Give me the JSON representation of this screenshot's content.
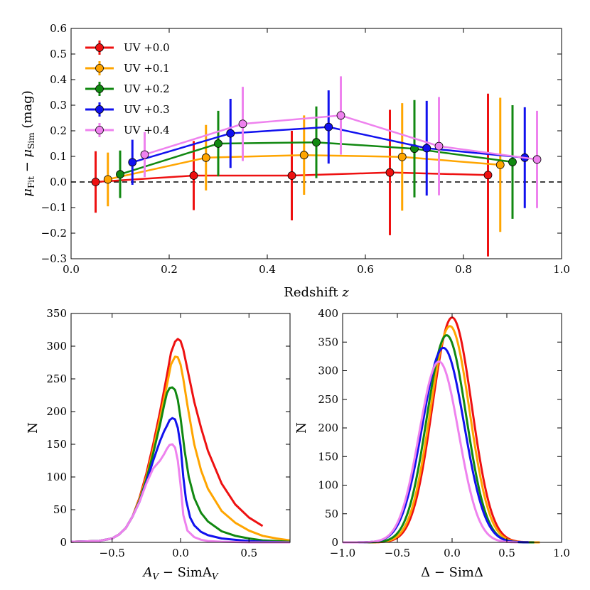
{
  "chart_data": [
    {
      "id": "top",
      "type": "line",
      "xlabel": "Redshift z",
      "ylabel": "μFit − μSim (mag)",
      "ylabel_parts": {
        "mu": "μ",
        "fit_sub": "Fit",
        "minus": " − ",
        "sim_sub": "Sim",
        "unit": " (mag)"
      },
      "xlim": [
        0.0,
        1.0
      ],
      "ylim": [
        -0.3,
        0.6
      ],
      "xticks": [
        "0.0",
        "0.2",
        "0.4",
        "0.6",
        "0.8",
        "1.0"
      ],
      "yticks": [
        "−0.3",
        "−0.2",
        "−0.1",
        "0.0",
        "0.1",
        "0.2",
        "0.3",
        "0.4",
        "0.5",
        "0.6"
      ],
      "reference_line": 0.0,
      "legend_position": "top-left",
      "series": [
        {
          "name": "UV +0.0",
          "color": "#ee1111",
          "x": [
            0.05,
            0.25,
            0.45,
            0.65,
            0.85
          ],
          "y": [
            0.0,
            0.025,
            0.025,
            0.037,
            0.027
          ],
          "err": [
            0.12,
            0.135,
            0.175,
            0.245,
            0.318
          ]
        },
        {
          "name": "UV +0.1",
          "color": "#ffa500",
          "x": [
            0.075,
            0.275,
            0.475,
            0.675,
            0.875
          ],
          "y": [
            0.01,
            0.095,
            0.105,
            0.098,
            0.067
          ],
          "err": [
            0.105,
            0.128,
            0.155,
            0.21,
            0.262
          ]
        },
        {
          "name": "UV +0.2",
          "color": "#118811",
          "x": [
            0.1,
            0.3,
            0.5,
            0.7,
            0.9
          ],
          "y": [
            0.03,
            0.15,
            0.155,
            0.13,
            0.078
          ],
          "err": [
            0.093,
            0.128,
            0.14,
            0.19,
            0.222
          ]
        },
        {
          "name": "UV +0.3",
          "color": "#1111ee",
          "x": [
            0.125,
            0.325,
            0.525,
            0.725,
            0.925
          ],
          "y": [
            0.077,
            0.19,
            0.215,
            0.132,
            0.095
          ],
          "err": [
            0.088,
            0.135,
            0.143,
            0.185,
            0.197
          ]
        },
        {
          "name": "UV +0.4",
          "color": "#ee82ee",
          "x": [
            0.15,
            0.35,
            0.55,
            0.75,
            0.95
          ],
          "y": [
            0.107,
            0.227,
            0.26,
            0.14,
            0.088
          ],
          "err": [
            0.088,
            0.145,
            0.153,
            0.192,
            0.19
          ]
        }
      ]
    },
    {
      "id": "bottom-left",
      "type": "line",
      "xlabel": "AV − SimAV",
      "xlabel_parts": {
        "a": "A",
        "sub": "V",
        "rest": " − SimA",
        "sub2": "V"
      },
      "ylabel": "N",
      "xlim": [
        -0.8,
        0.8
      ],
      "ylim": [
        0,
        350
      ],
      "xticks": [
        "−0.5",
        "0.0",
        "0.5"
      ],
      "xtick_values": [
        -0.5,
        0.0,
        0.5
      ],
      "yticks": [
        "0",
        "50",
        "100",
        "150",
        "200",
        "250",
        "300",
        "350"
      ],
      "series": [
        {
          "name": "UV +0.0",
          "color": "#ee1111",
          "x": [
            -0.8,
            -0.6,
            -0.5,
            -0.45,
            -0.4,
            -0.35,
            -0.3,
            -0.25,
            -0.2,
            -0.15,
            -0.1,
            -0.07,
            -0.04,
            -0.02,
            0.0,
            0.02,
            0.05,
            0.1,
            0.15,
            0.2,
            0.3,
            0.4,
            0.5,
            0.6
          ],
          "y": [
            1,
            2,
            6,
            12,
            22,
            40,
            68,
            105,
            150,
            200,
            255,
            290,
            307,
            311,
            308,
            295,
            265,
            215,
            175,
            140,
            90,
            58,
            38,
            25
          ]
        },
        {
          "name": "UV +0.1",
          "color": "#ffa500",
          "x": [
            -0.8,
            -0.6,
            -0.5,
            -0.45,
            -0.4,
            -0.35,
            -0.3,
            -0.25,
            -0.2,
            -0.15,
            -0.1,
            -0.07,
            -0.04,
            -0.02,
            0.0,
            0.02,
            0.05,
            0.1,
            0.15,
            0.2,
            0.3,
            0.4,
            0.5,
            0.6,
            0.7,
            0.8
          ],
          "y": [
            1,
            2,
            6,
            12,
            22,
            40,
            66,
            100,
            142,
            190,
            240,
            272,
            284,
            283,
            272,
            250,
            210,
            150,
            110,
            82,
            48,
            30,
            18,
            10,
            6,
            3
          ]
        },
        {
          "name": "UV +0.2",
          "color": "#118811",
          "x": [
            -0.8,
            -0.6,
            -0.5,
            -0.45,
            -0.4,
            -0.35,
            -0.3,
            -0.25,
            -0.2,
            -0.15,
            -0.12,
            -0.1,
            -0.08,
            -0.06,
            -0.04,
            -0.02,
            0.0,
            0.03,
            0.06,
            0.1,
            0.15,
            0.2,
            0.3,
            0.4,
            0.5,
            0.6,
            0.7,
            0.8
          ],
          "y": [
            1,
            2,
            6,
            12,
            22,
            40,
            64,
            96,
            136,
            180,
            210,
            228,
            236,
            237,
            233,
            218,
            190,
            140,
            100,
            68,
            45,
            32,
            17,
            10,
            6,
            3,
            2,
            1
          ]
        },
        {
          "name": "UV +0.3",
          "color": "#1111ee",
          "x": [
            -0.8,
            -0.6,
            -0.5,
            -0.45,
            -0.4,
            -0.35,
            -0.3,
            -0.25,
            -0.2,
            -0.15,
            -0.12,
            -0.1,
            -0.08,
            -0.06,
            -0.04,
            -0.02,
            0.0,
            0.02,
            0.04,
            0.07,
            0.1,
            0.15,
            0.2,
            0.3,
            0.4,
            0.5,
            0.6,
            0.8
          ],
          "y": [
            1,
            2,
            6,
            12,
            22,
            40,
            62,
            92,
            125,
            155,
            170,
            178,
            187,
            190,
            188,
            175,
            148,
            100,
            65,
            38,
            26,
            16,
            11,
            6,
            4,
            2,
            1,
            0
          ]
        },
        {
          "name": "UV +0.4",
          "color": "#ee82ee",
          "x": [
            -0.8,
            -0.6,
            -0.5,
            -0.45,
            -0.4,
            -0.35,
            -0.3,
            -0.25,
            -0.2,
            -0.15,
            -0.12,
            -0.1,
            -0.08,
            -0.06,
            -0.04,
            -0.02,
            0.0,
            0.02,
            0.05,
            0.1,
            0.15,
            0.2,
            0.3,
            0.5,
            0.8
          ],
          "y": [
            1,
            2,
            6,
            12,
            22,
            40,
            62,
            90,
            113,
            125,
            135,
            143,
            149,
            150,
            145,
            125,
            88,
            42,
            18,
            8,
            4,
            2,
            1,
            0,
            0
          ]
        }
      ]
    },
    {
      "id": "bottom-right",
      "type": "line",
      "xlabel": "Δ − SimΔ",
      "ylabel": "N",
      "xlim": [
        -1.0,
        1.0
      ],
      "ylim": [
        0,
        400
      ],
      "xticks": [
        "−1.0",
        "−0.5",
        "0.0",
        "0.5",
        "1.0"
      ],
      "xtick_values": [
        -1.0,
        -0.5,
        0.0,
        0.5,
        1.0
      ],
      "yticks": [
        "0",
        "50",
        "100",
        "150",
        "200",
        "250",
        "300",
        "350",
        "400"
      ],
      "series": [
        {
          "name": "UV +0.0",
          "color": "#ee1111",
          "mu": 0.0,
          "sigma": 0.18,
          "peak": 393,
          "x_range": [
            -0.8,
            0.8
          ]
        },
        {
          "name": "UV +0.1",
          "color": "#ffa500",
          "mu": -0.02,
          "sigma": 0.18,
          "peak": 378,
          "x_range": [
            -0.85,
            0.8
          ]
        },
        {
          "name": "UV +0.2",
          "color": "#118811",
          "mu": -0.05,
          "sigma": 0.18,
          "peak": 362,
          "x_range": [
            -0.9,
            0.75
          ]
        },
        {
          "name": "UV +0.3",
          "color": "#1111ee",
          "mu": -0.08,
          "sigma": 0.19,
          "peak": 340,
          "x_range": [
            -0.95,
            0.7
          ]
        },
        {
          "name": "UV +0.4",
          "color": "#ee82ee",
          "mu": -0.12,
          "sigma": 0.18,
          "peak": 316,
          "x_range": [
            -1.0,
            0.6
          ]
        }
      ]
    }
  ]
}
